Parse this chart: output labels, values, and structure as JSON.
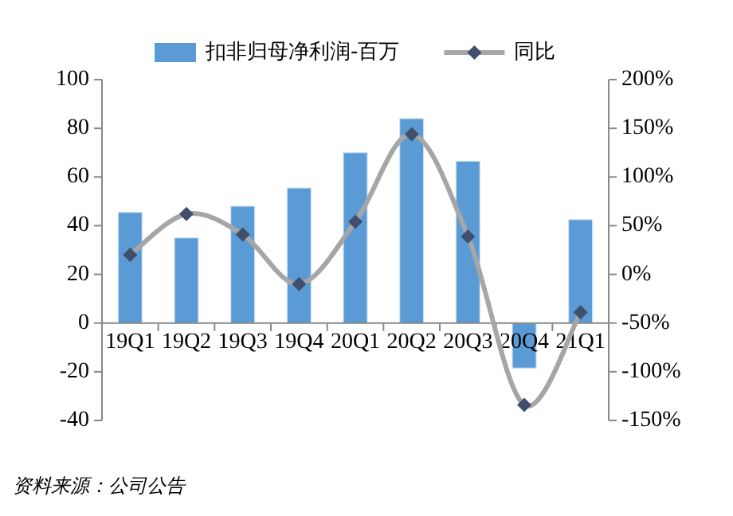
{
  "chart_data": {
    "type": "bar",
    "categories": [
      "19Q1",
      "19Q2",
      "19Q3",
      "19Q4",
      "20Q1",
      "20Q2",
      "20Q3",
      "20Q4",
      "21Q1"
    ],
    "series": [
      {
        "name": "扣非归母净利润-百万",
        "color": "#5b9bd5",
        "values": [
          45.5,
          35,
          48,
          55.5,
          70,
          84,
          66.5,
          -18.5,
          42.5
        ]
      },
      {
        "name": "同比",
        "type": "line",
        "axis": "y2",
        "color": "#a6a6a6",
        "marker": "diamond",
        "values": [
          20,
          62,
          41,
          -10,
          54,
          144,
          39,
          -134,
          -39
        ]
      }
    ],
    "ylim": [
      -40,
      100
    ],
    "yticks": [
      -40,
      -20,
      0,
      20,
      40,
      60,
      80,
      100
    ],
    "y2lim": [
      -150,
      200
    ],
    "y2ticks": [
      {
        "value": -150,
        "label": "-150%"
      },
      {
        "value": -100,
        "label": "-100%"
      },
      {
        "value": -50,
        "label": "-50%"
      },
      {
        "value": 0,
        "label": "0%"
      },
      {
        "value": 50,
        "label": "50%"
      },
      {
        "value": 100,
        "label": "100%"
      },
      {
        "value": 150,
        "label": "150%"
      },
      {
        "value": 200,
        "label": "200%"
      }
    ],
    "legend": "top",
    "grid": false,
    "annotations": [
      "资料来源：公司公告"
    ]
  }
}
